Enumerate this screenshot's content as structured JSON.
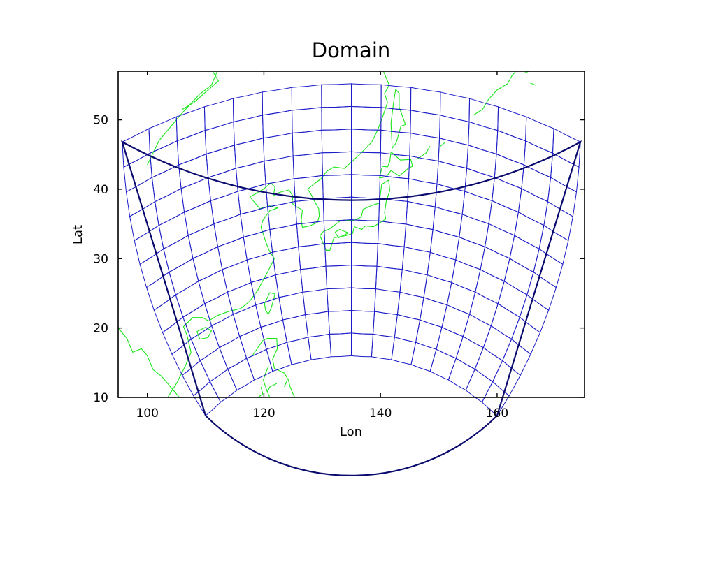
{
  "chart_data": {
    "type": "map",
    "title": "Domain",
    "xlabel": "Lon",
    "ylabel": "Lat",
    "xlim": [
      95,
      175
    ],
    "ylim": [
      10,
      57
    ],
    "x_ticks": [
      100,
      120,
      140,
      160
    ],
    "y_ticks": [
      10,
      20,
      30,
      40,
      50
    ],
    "x_tick_labels": [
      "100",
      "120",
      "140",
      "160"
    ],
    "y_tick_labels": [
      "10",
      "20",
      "30",
      "40",
      "50"
    ],
    "grid": false,
    "domain": {
      "projection": "Lambert conformal conic",
      "center_lon": 135,
      "corners": {
        "lower_left": [
          110,
          13
        ],
        "lower_right": [
          160,
          13
        ],
        "upper_left": [
          95.7,
          49
        ],
        "upper_right": [
          174.3,
          49
        ]
      },
      "bottom_center_lat": 16,
      "top_center_lat": 55.2,
      "mesh_columns": 16,
      "mesh_rows": 12
    },
    "colors": {
      "mesh": "#1d1dc8",
      "boundary": "#0a0a6e",
      "coastline": "#19e619",
      "frame": "#000000"
    }
  }
}
